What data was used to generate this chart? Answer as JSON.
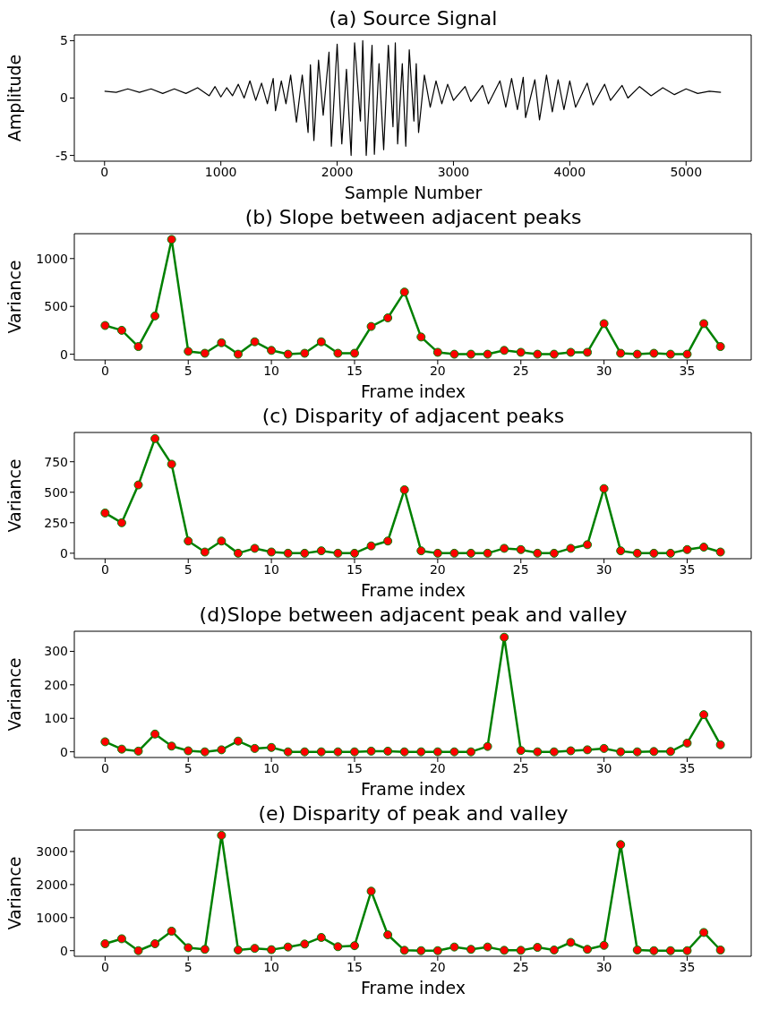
{
  "chart_data": [
    {
      "type": "line",
      "title": "(a) Source Signal",
      "xlabel": "Sample Number",
      "ylabel": "Amplitude",
      "xlim": [
        -260,
        5560
      ],
      "xticks": [
        0,
        1000,
        2000,
        3000,
        4000,
        5000
      ],
      "ylim": [
        -5.5,
        5.5
      ],
      "yticks": [
        -5,
        0,
        5
      ],
      "marker": "none",
      "grid": false,
      "x": [
        0,
        100,
        200,
        300,
        400,
        500,
        600,
        700,
        800,
        900,
        950,
        1000,
        1050,
        1100,
        1150,
        1200,
        1250,
        1300,
        1350,
        1400,
        1450,
        1470,
        1520,
        1560,
        1600,
        1650,
        1700,
        1750,
        1770,
        1800,
        1840,
        1880,
        1930,
        1950,
        2000,
        2040,
        2080,
        2120,
        2150,
        2200,
        2220,
        2250,
        2300,
        2320,
        2360,
        2400,
        2440,
        2480,
        2500,
        2520,
        2560,
        2590,
        2620,
        2660,
        2680,
        2700,
        2750,
        2800,
        2850,
        2900,
        2950,
        3000,
        3100,
        3150,
        3250,
        3300,
        3400,
        3450,
        3500,
        3550,
        3600,
        3620,
        3700,
        3740,
        3800,
        3850,
        3900,
        3950,
        4000,
        4050,
        4150,
        4200,
        4300,
        4350,
        4450,
        4500,
        4600,
        4700,
        4800,
        4900,
        5000,
        5100,
        5200,
        5300
      ],
      "series": [
        {
          "color": "#000000",
          "values": [
            0.6,
            0.5,
            0.8,
            0.5,
            0.8,
            0.4,
            0.8,
            0.4,
            0.9,
            0.2,
            1.0,
            0.1,
            0.9,
            0.2,
            1.2,
            0.0,
            1.5,
            -0.2,
            1.3,
            -0.5,
            1.7,
            -1.1,
            1.5,
            -0.5,
            2.0,
            -2.1,
            2.0,
            -3.0,
            2.9,
            -3.7,
            3.3,
            -1.5,
            4.0,
            -4.2,
            4.7,
            -4.0,
            2.5,
            -5.0,
            4.8,
            -2.0,
            5.0,
            -5.0,
            4.6,
            -4.9,
            3.0,
            -4.5,
            4.6,
            -2.5,
            4.8,
            -4.0,
            3.0,
            -4.2,
            4.2,
            -2.0,
            3.0,
            -3.0,
            2.0,
            -0.8,
            1.5,
            -0.5,
            1.2,
            -0.2,
            1.0,
            -0.3,
            1.1,
            -0.5,
            1.5,
            -0.8,
            1.7,
            -1.0,
            1.8,
            -1.7,
            1.6,
            -1.9,
            2.0,
            -1.2,
            1.6,
            -1.0,
            1.5,
            -0.8,
            1.3,
            -0.6,
            1.2,
            -0.2,
            1.1,
            0.0,
            1.0,
            0.2,
            0.9,
            0.3,
            0.8,
            0.4,
            0.6,
            0.5
          ]
        }
      ]
    },
    {
      "type": "line",
      "title": "(b) Slope between adjacent peaks",
      "xlabel": "Frame index",
      "ylabel": "Variance",
      "xlim": [
        -1.85,
        38.85
      ],
      "xticks": [
        0,
        5,
        10,
        15,
        20,
        25,
        30,
        35
      ],
      "ylim": [
        -60,
        1260
      ],
      "yticks": [
        0,
        500,
        1000
      ],
      "marker": "circle",
      "grid": false,
      "x": [
        0,
        1,
        2,
        3,
        4,
        5,
        6,
        7,
        8,
        9,
        10,
        11,
        12,
        13,
        14,
        15,
        16,
        17,
        18,
        19,
        20,
        21,
        22,
        23,
        24,
        25,
        26,
        27,
        28,
        29,
        30,
        31,
        32,
        33,
        34,
        35,
        36,
        37
      ],
      "series": [
        {
          "color": "#008000",
          "colors": [
            "#ff0000",
            "#ff0000",
            "#ff0000",
            "#ff0000",
            "#ff0000",
            "#ff0000",
            "#ff0000",
            "#ff0000",
            "#ff0000",
            "#ff0000",
            "#ff0000",
            "#ff0000",
            "#ff0000",
            "#ff0000",
            "#ff0000",
            "#ff0000",
            "#ff0000",
            "#ff0000",
            "#ff0000",
            "#ff0000",
            "#ff0000",
            "#ff0000",
            "#ff0000",
            "#ff0000",
            "#ff0000",
            "#ff0000",
            "#ff0000",
            "#ff0000",
            "#ff0000",
            "#ff0000",
            "#ff0000",
            "#ff0000",
            "#ff0000",
            "#ff0000",
            "#ff0000",
            "#ff0000",
            "#ff0000",
            "#ff0000"
          ],
          "values": [
            300,
            250,
            80,
            400,
            1200,
            30,
            10,
            120,
            0,
            130,
            40,
            0,
            10,
            130,
            10,
            10,
            290,
            380,
            650,
            180,
            20,
            0,
            0,
            0,
            40,
            20,
            0,
            0,
            20,
            20,
            320,
            10,
            0,
            10,
            0,
            0,
            320,
            80
          ]
        }
      ]
    },
    {
      "type": "line",
      "title": "(c) Disparity of adjacent peaks",
      "xlabel": "Frame index",
      "ylabel": "Variance",
      "xlim": [
        -1.85,
        38.85
      ],
      "xticks": [
        0,
        5,
        10,
        15,
        20,
        25,
        30,
        35
      ],
      "ylim": [
        -45,
        990
      ],
      "yticks": [
        0,
        250,
        500,
        750
      ],
      "marker": "circle",
      "grid": false,
      "x": [
        0,
        1,
        2,
        3,
        4,
        5,
        6,
        7,
        8,
        9,
        10,
        11,
        12,
        13,
        14,
        15,
        16,
        17,
        18,
        19,
        20,
        21,
        22,
        23,
        24,
        25,
        26,
        27,
        28,
        29,
        30,
        31,
        32,
        33,
        34,
        35,
        36,
        37
      ],
      "series": [
        {
          "color": "#008000",
          "colors": [
            "#ff0000",
            "#ff0000",
            "#ff0000",
            "#ff0000",
            "#ff0000",
            "#ff0000",
            "#ff0000",
            "#ff0000",
            "#ff0000",
            "#ff0000",
            "#ff0000",
            "#ff0000",
            "#ff0000",
            "#ff0000",
            "#ff0000",
            "#ff0000",
            "#ff0000",
            "#ff0000",
            "#ff0000",
            "#ff0000",
            "#ff0000",
            "#ff0000",
            "#ff0000",
            "#ff0000",
            "#ff0000",
            "#ff0000",
            "#ff0000",
            "#ff0000",
            "#ff0000",
            "#ff0000",
            "#ff0000",
            "#ff0000",
            "#ff0000",
            "#ff0000",
            "#ff0000",
            "#ff0000",
            "#ff0000",
            "#ff0000"
          ],
          "values": [
            330,
            250,
            560,
            940,
            730,
            100,
            10,
            100,
            0,
            40,
            10,
            0,
            0,
            20,
            0,
            0,
            60,
            100,
            520,
            20,
            0,
            0,
            0,
            0,
            40,
            30,
            0,
            0,
            40,
            70,
            530,
            20,
            0,
            0,
            0,
            30,
            50,
            10
          ]
        }
      ]
    },
    {
      "type": "line",
      "title": "(d)Slope between adjacent peak and valley",
      "xlabel": "Frame index",
      "ylabel": "Variance",
      "xlim": [
        -1.85,
        38.85
      ],
      "xticks": [
        0,
        5,
        10,
        15,
        20,
        25,
        30,
        35
      ],
      "ylim": [
        -17,
        360
      ],
      "yticks": [
        0,
        100,
        200,
        300
      ],
      "marker": "circle",
      "grid": false,
      "x": [
        0,
        1,
        2,
        3,
        4,
        5,
        6,
        7,
        8,
        9,
        10,
        11,
        12,
        13,
        14,
        15,
        16,
        17,
        18,
        19,
        20,
        21,
        22,
        23,
        24,
        25,
        26,
        27,
        28,
        29,
        30,
        31,
        32,
        33,
        34,
        35,
        36,
        37
      ],
      "series": [
        {
          "color": "#008000",
          "colors": [
            "#ff0000",
            "#ff0000",
            "#ff0000",
            "#ff0000",
            "#ff0000",
            "#ff0000",
            "#ff0000",
            "#ff0000",
            "#ff0000",
            "#ff0000",
            "#ff0000",
            "#ff0000",
            "#ff0000",
            "#ff0000",
            "#ff0000",
            "#ff0000",
            "#ff0000",
            "#ff0000",
            "#ff0000",
            "#ff0000",
            "#ff0000",
            "#ff0000",
            "#ff0000",
            "#ff0000",
            "#ff0000",
            "#ff0000",
            "#ff0000",
            "#ff0000",
            "#ff0000",
            "#ff0000",
            "#ff0000",
            "#ff0000",
            "#ff0000",
            "#ff0000",
            "#ff0000",
            "#ff0000",
            "#ff0000",
            "#ff0000"
          ],
          "values": [
            30,
            8,
            2,
            53,
            17,
            3,
            0,
            6,
            32,
            10,
            13,
            0,
            0,
            0,
            0,
            0,
            2,
            2,
            0,
            0,
            0,
            0,
            0,
            16,
            342,
            4,
            0,
            0,
            3,
            6,
            10,
            0,
            0,
            1,
            1,
            26,
            111,
            21
          ]
        }
      ]
    },
    {
      "type": "line",
      "title": "(e) Disparity of peak and valley",
      "xlabel": "Frame index",
      "ylabel": "Variance",
      "xlim": [
        -1.85,
        38.85
      ],
      "xticks": [
        0,
        5,
        10,
        15,
        20,
        25,
        30,
        35
      ],
      "ylim": [
        -170,
        3650
      ],
      "yticks": [
        0,
        1000,
        2000,
        3000
      ],
      "marker": "circle",
      "grid": false,
      "x": [
        0,
        1,
        2,
        3,
        4,
        5,
        6,
        7,
        8,
        9,
        10,
        11,
        12,
        13,
        14,
        15,
        16,
        17,
        18,
        19,
        20,
        21,
        22,
        23,
        24,
        25,
        26,
        27,
        28,
        29,
        30,
        31,
        32,
        33,
        34,
        35,
        36,
        37
      ],
      "series": [
        {
          "color": "#008000",
          "colors": [
            "#ff0000",
            "#ff0000",
            "#ff0000",
            "#ff0000",
            "#ff0000",
            "#ff0000",
            "#ff0000",
            "#ff0000",
            "#ff0000",
            "#ff0000",
            "#ff0000",
            "#ff0000",
            "#ff0000",
            "#ff0000",
            "#ff0000",
            "#ff0000",
            "#ff0000",
            "#ff0000",
            "#ff0000",
            "#ff0000",
            "#ff0000",
            "#ff0000",
            "#ff0000",
            "#ff0000",
            "#ff0000",
            "#ff0000",
            "#ff0000",
            "#ff0000",
            "#ff0000",
            "#ff0000",
            "#ff0000",
            "#ff0000",
            "#ff0000",
            "#ff0000",
            "#ff0000",
            "#ff0000",
            "#ff0000",
            "#ff0000"
          ],
          "values": [
            210,
            360,
            0,
            210,
            590,
            90,
            40,
            3490,
            20,
            70,
            30,
            110,
            200,
            400,
            120,
            150,
            1800,
            480,
            10,
            0,
            0,
            110,
            40,
            110,
            10,
            10,
            100,
            20,
            250,
            40,
            160,
            3210,
            20,
            0,
            0,
            0,
            550,
            20
          ]
        }
      ]
    }
  ]
}
